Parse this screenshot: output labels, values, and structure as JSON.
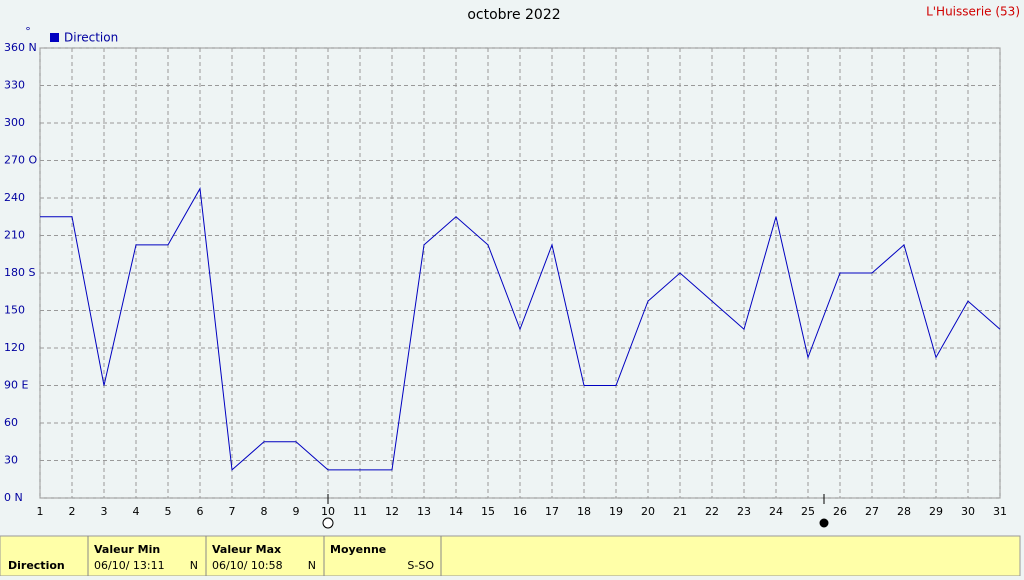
{
  "chart_data": {
    "type": "line",
    "title": "octobre 2022",
    "station": "L'Huisserie (53)",
    "y_unit": "°",
    "x": [
      1,
      2,
      3,
      4,
      5,
      6,
      7,
      8,
      9,
      10,
      11,
      12,
      13,
      14,
      15,
      16,
      17,
      18,
      19,
      20,
      21,
      22,
      23,
      24,
      25,
      26,
      27,
      28,
      29,
      30,
      31
    ],
    "series": [
      {
        "name": "Direction",
        "color": "#0000c0",
        "values": [
          225,
          225,
          90,
          202.5,
          202.5,
          247.5,
          22.5,
          45,
          45,
          22.5,
          22.5,
          22.5,
          202.5,
          225,
          202.5,
          135,
          202.5,
          90,
          90,
          157.5,
          180,
          157.5,
          135,
          225,
          112.5,
          180,
          180,
          202.5,
          112.5,
          157.5,
          135
        ]
      }
    ],
    "xlim": [
      1,
      31
    ],
    "xticks": [
      1,
      2,
      3,
      4,
      5,
      6,
      7,
      8,
      9,
      10,
      11,
      12,
      13,
      14,
      15,
      16,
      17,
      18,
      19,
      20,
      21,
      22,
      23,
      24,
      25,
      26,
      27,
      28,
      29,
      30,
      31
    ],
    "ylim": [
      0,
      360
    ],
    "yticks": [
      {
        "value": 0,
        "label": "0  N"
      },
      30,
      60,
      {
        "value": 90,
        "label": "90  E"
      },
      120,
      150,
      {
        "value": 180,
        "label": "180 S"
      },
      210,
      240,
      {
        "value": 270,
        "label": "270 O"
      },
      300,
      330,
      {
        "value": 360,
        "label": "360 N"
      }
    ],
    "grid": true,
    "moon_markers": [
      10,
      25.5
    ]
  },
  "summary": {
    "row_label": "Direction",
    "min": {
      "label": "Valeur Min",
      "when": "06/10/  13:11",
      "value": "N"
    },
    "max": {
      "label": "Valeur Max",
      "when": "06/10/  10:58",
      "value": "N"
    },
    "mean": {
      "label": "Moyenne",
      "value": "S-SO"
    }
  }
}
